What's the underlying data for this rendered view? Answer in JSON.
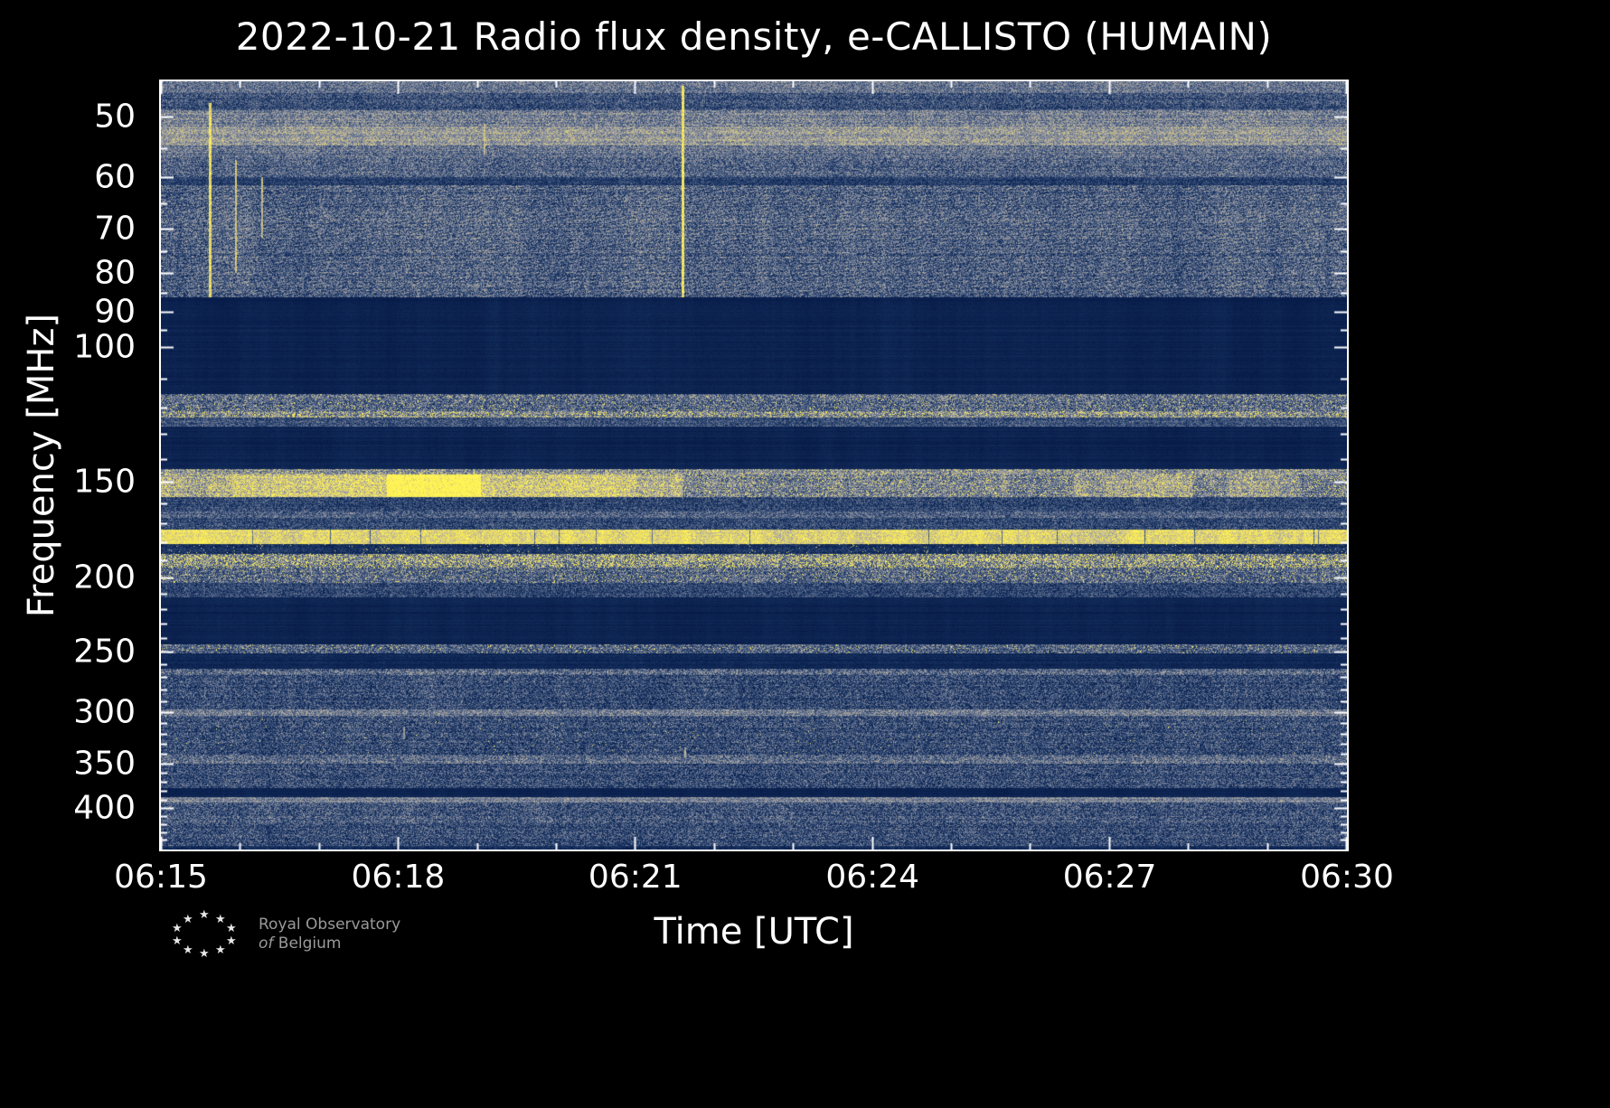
{
  "footer": {
    "logo_line1": "Royal Observatory",
    "logo_line2_word1": "of",
    "logo_line2_word2": "Belgium",
    "star": "★"
  },
  "chart_data": {
    "type": "heatmap",
    "subtype": "radio-spectrogram",
    "title": "2022-10-21 Radio flux density, e-CALLISTO (HUMAIN)",
    "xlabel": "Time [UTC]",
    "ylabel": "Frequency [MHz]",
    "time_start": "06:15",
    "time_end": "06:30",
    "x_tick_labels": [
      "06:15",
      "06:18",
      "06:21",
      "06:24",
      "06:27",
      "06:30"
    ],
    "x_major_ts": [
      0,
      0.2,
      0.4,
      0.6,
      0.8,
      1
    ],
    "x_minor_ts": [
      0.0667,
      0.1333,
      0.2667,
      0.3333,
      0.4667,
      0.5333,
      0.6667,
      0.7333,
      0.8667,
      0.9333
    ],
    "y_scale": "log",
    "freq_top_mhz": 45,
    "freq_bottom_mhz": 452,
    "y_major_ticks": [
      50,
      60,
      70,
      80,
      90,
      100,
      150,
      200,
      250,
      300,
      350,
      400
    ],
    "y_minor_ticks": [
      55,
      65,
      75,
      85,
      95,
      110,
      120,
      130,
      140,
      160,
      170,
      180,
      190,
      210,
      220,
      230,
      240,
      260,
      270,
      280,
      290,
      310,
      320,
      330,
      340,
      360,
      370,
      380,
      390,
      410,
      420,
      430,
      440
    ],
    "colormap": [
      [
        0,
        "#081c49"
      ],
      [
        0.18,
        "#15305e"
      ],
      [
        0.38,
        "#44597f"
      ],
      [
        0.58,
        "#8d91a0"
      ],
      [
        0.74,
        "#bdb69a"
      ],
      [
        0.87,
        "#e6d668"
      ],
      [
        1,
        "#fff455"
      ]
    ],
    "bands": [
      {
        "f0": 45,
        "f1": 46.5,
        "base": 0.5,
        "noise": 0.2
      },
      {
        "f0": 46.5,
        "f1": 49,
        "base": 0.33,
        "noise": 0.22
      },
      {
        "f0": 49,
        "f1": 51.5,
        "base": 0.52,
        "noise": 0.22
      },
      {
        "f0": 51.5,
        "f1": 54.5,
        "base": 0.62,
        "noise": 0.2,
        "row": 0.06
      },
      {
        "f0": 54.5,
        "f1": 56.5,
        "base": 0.48,
        "noise": 0.22
      },
      {
        "f0": 56.5,
        "f1": 60,
        "base": 0.4,
        "noise": 0.24
      },
      {
        "f0": 60,
        "f1": 61.5,
        "base": 0.24,
        "noise": 0.18
      },
      {
        "f0": 61.5,
        "f1": 86,
        "base": 0.4,
        "noise": 0.26,
        "col": 0.07,
        "row": 0.07,
        "diag": 0.05
      },
      {
        "f0": 86,
        "f1": 115,
        "base": 0.055,
        "noise": 0.04
      },
      {
        "f0": 115,
        "f1": 121,
        "base": 0.42,
        "noise": 0.26,
        "sp": 0.05
      },
      {
        "f0": 121,
        "f1": 123.5,
        "base": 0.5,
        "noise": 0.22,
        "sp": 0.2
      },
      {
        "f0": 123.5,
        "f1": 127,
        "base": 0.33,
        "noise": 0.2
      },
      {
        "f0": 127,
        "f1": 144,
        "base": 0.055,
        "noise": 0.04
      },
      {
        "f0": 144,
        "f1": 146.5,
        "base": 0.55,
        "noise": 0.22,
        "sp": 0.12
      },
      {
        "f0": 146.5,
        "f1": 157,
        "base": 0.5,
        "noise": 0.24,
        "col": 0.08,
        "sp": 0.1,
        "patches": [
          {
            "t0": 0,
            "t1": 0.44,
            "boost": 0.2
          },
          {
            "t0": 0.06,
            "t1": 0.4,
            "boost": 0.1
          },
          {
            "t0": 0.19,
            "t1": 0.27,
            "boost": 0.33
          },
          {
            "t0": 0.77,
            "t1": 0.87,
            "boost": 0.15
          },
          {
            "t0": 0.9,
            "t1": 0.96,
            "boost": 0.1
          }
        ]
      },
      {
        "f0": 157,
        "f1": 164,
        "base": 0.3,
        "noise": 0.22
      },
      {
        "f0": 164,
        "f1": 167,
        "base": 0.42,
        "noise": 0.22
      },
      {
        "f0": 167,
        "f1": 173,
        "base": 0.3,
        "noise": 0.22
      },
      {
        "f0": 173,
        "f1": 180.5,
        "base": 0.82,
        "noise": 0.12,
        "col": 0.14,
        "sp": 0.25,
        "spv": 0.9,
        "cut": 0.015
      },
      {
        "f0": 180.5,
        "f1": 186,
        "base": 0.18,
        "noise": 0.16,
        "sp": 0.02,
        "spv": 0.8
      },
      {
        "f0": 186,
        "f1": 194,
        "base": 0.48,
        "noise": 0.24,
        "sp": 0.28
      },
      {
        "f0": 194,
        "f1": 203,
        "base": 0.42,
        "noise": 0.25,
        "sp": 0.06
      },
      {
        "f0": 203,
        "f1": 212,
        "base": 0.3,
        "noise": 0.22
      },
      {
        "f0": 212,
        "f1": 244,
        "base": 0.06,
        "noise": 0.04
      },
      {
        "f0": 244,
        "f1": 251,
        "base": 0.4,
        "noise": 0.26,
        "sp": 0.04
      },
      {
        "f0": 251,
        "f1": 263,
        "base": 0.11,
        "noise": 0.08
      },
      {
        "f0": 263,
        "f1": 268,
        "base": 0.42,
        "noise": 0.26
      },
      {
        "f0": 268,
        "f1": 297,
        "base": 0.3,
        "noise": 0.26,
        "col": 0.06
      },
      {
        "f0": 297,
        "f1": 303,
        "base": 0.5,
        "noise": 0.22
      },
      {
        "f0": 303,
        "f1": 341,
        "base": 0.3,
        "noise": 0.26,
        "sp": 0.004
      },
      {
        "f0": 341,
        "f1": 350,
        "base": 0.45,
        "noise": 0.25
      },
      {
        "f0": 350,
        "f1": 376,
        "base": 0.3,
        "noise": 0.26
      },
      {
        "f0": 376,
        "f1": 387,
        "base": 0.07,
        "noise": 0.05
      },
      {
        "f0": 387,
        "f1": 393,
        "base": 0.55,
        "noise": 0.18
      },
      {
        "f0": 393,
        "f1": 420,
        "base": 0.35,
        "noise": 0.26,
        "col": 0.06
      },
      {
        "f0": 420,
        "f1": 448,
        "base": 0.3,
        "noise": 0.26
      },
      {
        "f0": 448,
        "f1": 452,
        "base": 0.16,
        "noise": 0.12
      }
    ],
    "streaks": [
      {
        "t": 0.041,
        "hw": 0.0013,
        "f0": 48,
        "f1": 86,
        "v": 0.9
      },
      {
        "t": 0.063,
        "hw": 0.001,
        "f0": 57,
        "f1": 80,
        "v": 0.8
      },
      {
        "t": 0.085,
        "hw": 0.001,
        "f0": 60,
        "f1": 72,
        "v": 0.75
      },
      {
        "t": 0.273,
        "hw": 0.0008,
        "f0": 51,
        "f1": 56,
        "v": 0.75
      },
      {
        "t": 0.44,
        "hw": 0.0013,
        "f0": 45.5,
        "f1": 86,
        "v": 0.95
      },
      {
        "t": 0.205,
        "hw": 0.0008,
        "f0": 313,
        "f1": 325,
        "v": 0.6
      },
      {
        "t": 0.442,
        "hw": 0.0008,
        "f0": 333,
        "f1": 343,
        "v": 0.7
      }
    ]
  }
}
